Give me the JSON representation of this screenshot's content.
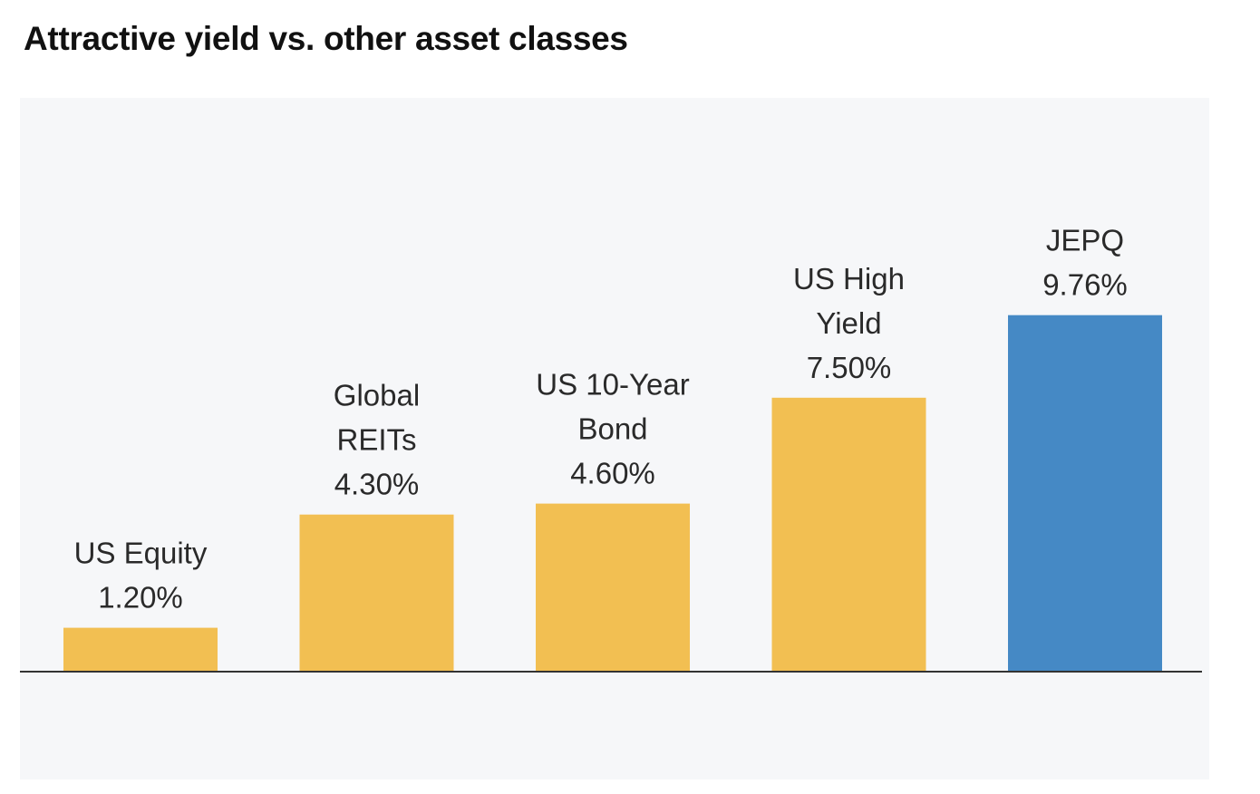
{
  "title": "Attractive yield vs. other asset classes",
  "colors": {
    "background": "#ffffff",
    "panel": "#f6f7f9",
    "bar_default": "#f2bf52",
    "bar_highlight": "#4589c5",
    "axis": "#333333",
    "text": "#2a2a2a"
  },
  "chart_data": {
    "type": "bar",
    "title": "Attractive yield vs. other asset classes",
    "xlabel": "",
    "ylabel": "",
    "ylim": [
      0,
      10
    ],
    "grid": false,
    "legend": "none",
    "categories": [
      "US Equity",
      "Global REITs",
      "US 10-Year Bond",
      "US High Yield",
      "JEPQ"
    ],
    "values": [
      1.2,
      4.3,
      4.6,
      7.5,
      9.76
    ],
    "value_labels": [
      "1.20%",
      "4.30%",
      "4.60%",
      "7.50%",
      "9.76%"
    ],
    "label_lines": [
      [
        "US Equity"
      ],
      [
        "Global",
        "REITs"
      ],
      [
        "US 10-Year",
        "Bond"
      ],
      [
        "US High",
        "Yield"
      ],
      [
        "JEPQ"
      ]
    ],
    "highlight": [
      "JEPQ"
    ]
  }
}
